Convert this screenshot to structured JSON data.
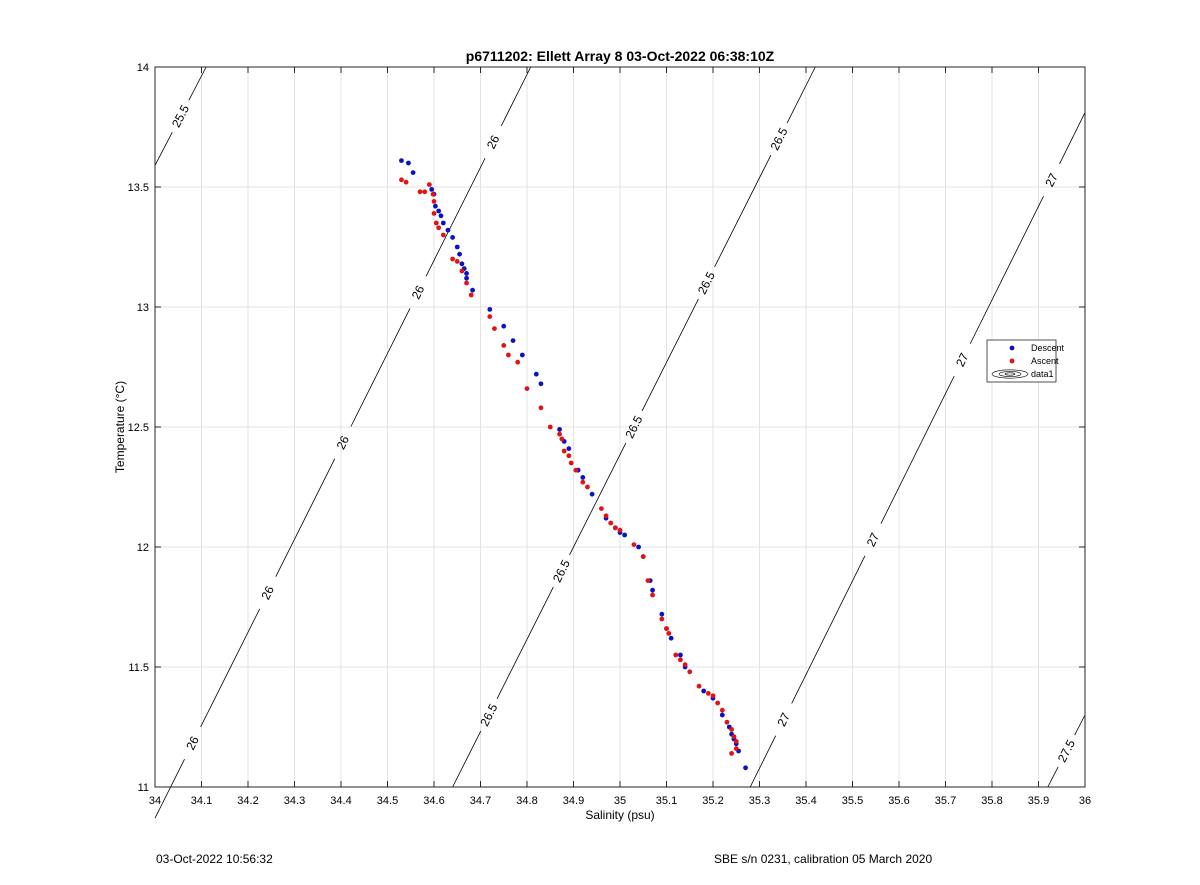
{
  "footer": {
    "left": "03-Oct-2022 10:56:32",
    "right": "SBE s/n 0231, calibration 05 March 2020"
  },
  "colors": {
    "descent": "#0a12c8",
    "ascent": "#e01414",
    "grid": "#e3e3e3",
    "contour": "#000000"
  },
  "chart_data": {
    "type": "scatter",
    "title": "p6711202: Ellett Array 8 03-Oct-2022 06:38:10Z",
    "xlabel": "Salinity (psu)",
    "ylabel": "Temperature (°C)",
    "xlim": [
      34,
      36
    ],
    "ylim": [
      11,
      14
    ],
    "xticks": [
      "34",
      "34.1",
      "34.2",
      "34.3",
      "34.4",
      "34.5",
      "34.6",
      "34.7",
      "34.8",
      "34.9",
      "35",
      "35.1",
      "35.2",
      "35.3",
      "35.4",
      "35.5",
      "35.6",
      "35.7",
      "35.8",
      "35.9",
      "36"
    ],
    "yticks": [
      "11",
      "11.5",
      "12",
      "12.5",
      "13",
      "13.5",
      "14"
    ],
    "grid": true,
    "legend_position": "right",
    "legend": [
      "Descent",
      "Ascent",
      "data1"
    ],
    "series": [
      {
        "name": "Descent",
        "marker": "dot",
        "x": [
          34.53,
          34.545,
          34.555,
          34.595,
          34.6,
          34.603,
          34.61,
          34.615,
          34.62,
          34.63,
          34.64,
          34.65,
          34.655,
          34.66,
          34.665,
          34.67,
          34.67,
          34.683,
          34.72,
          34.75,
          34.77,
          34.79,
          34.82,
          34.83,
          34.87,
          34.88,
          34.89,
          34.91,
          34.92,
          34.94,
          34.97,
          34.99,
          35.0,
          35.01,
          35.04,
          35.05,
          35.065,
          35.07,
          35.09,
          35.1,
          35.11,
          35.13,
          35.14,
          35.18,
          35.2,
          35.22,
          35.235,
          35.24,
          35.245,
          35.25,
          35.255,
          35.27
        ],
        "y": [
          13.61,
          13.6,
          13.56,
          13.49,
          13.47,
          13.42,
          13.4,
          13.38,
          13.35,
          13.32,
          13.29,
          13.25,
          13.22,
          13.18,
          13.16,
          13.14,
          13.12,
          13.07,
          12.99,
          12.92,
          12.86,
          12.8,
          12.72,
          12.68,
          12.49,
          12.44,
          12.41,
          12.32,
          12.29,
          12.22,
          12.12,
          12.08,
          12.06,
          12.05,
          12.0,
          11.96,
          11.86,
          11.82,
          11.72,
          11.66,
          11.62,
          11.55,
          11.5,
          11.4,
          11.37,
          11.3,
          11.25,
          11.22,
          11.2,
          11.18,
          11.15,
          11.08
        ]
      },
      {
        "name": "Ascent",
        "marker": "dot",
        "x": [
          34.53,
          34.54,
          34.57,
          34.58,
          34.59,
          34.598,
          34.6,
          34.6,
          34.605,
          34.61,
          34.62,
          34.64,
          34.65,
          34.66,
          34.67,
          34.68,
          34.72,
          34.73,
          34.75,
          34.76,
          34.78,
          34.8,
          34.83,
          34.85,
          34.87,
          34.875,
          34.88,
          34.89,
          34.895,
          34.905,
          34.92,
          34.93,
          34.96,
          34.97,
          34.98,
          34.99,
          35.0,
          35.03,
          35.05,
          35.06,
          35.07,
          35.09,
          35.1,
          35.105,
          35.12,
          35.13,
          35.14,
          35.15,
          35.17,
          35.19,
          35.2,
          35.21,
          35.22,
          35.23,
          35.24,
          35.245,
          35.25,
          35.25,
          35.24
        ],
        "y": [
          13.53,
          13.52,
          13.48,
          13.48,
          13.51,
          13.47,
          13.44,
          13.39,
          13.35,
          13.33,
          13.3,
          13.2,
          13.19,
          13.15,
          13.1,
          13.05,
          12.96,
          12.91,
          12.84,
          12.8,
          12.77,
          12.66,
          12.58,
          12.5,
          12.47,
          12.45,
          12.4,
          12.38,
          12.35,
          12.32,
          12.27,
          12.25,
          12.16,
          12.13,
          12.1,
          12.08,
          12.07,
          12.01,
          11.96,
          11.86,
          11.8,
          11.7,
          11.66,
          11.64,
          11.55,
          11.53,
          11.51,
          11.48,
          11.42,
          11.39,
          11.38,
          11.35,
          11.32,
          11.27,
          11.24,
          11.21,
          11.19,
          11.16,
          11.14
        ]
      }
    ],
    "contours": [
      {
        "level": "25.5",
        "labels": [
          "25.5"
        ],
        "line": [
          [
            34.0,
            13.59
          ],
          [
            34.11,
            14.0
          ]
        ]
      },
      {
        "level": "26",
        "labels": [
          "26",
          "26",
          "26",
          "26",
          "26"
        ],
        "line": [
          [
            34.0,
            10.87
          ],
          [
            34.808,
            14.0
          ]
        ]
      },
      {
        "level": "26.5",
        "labels": [
          "26.5",
          "26.5",
          "26.5",
          "26.5",
          "26.5"
        ],
        "line": [
          [
            34.64,
            11.0
          ],
          [
            35.42,
            14.0
          ]
        ]
      },
      {
        "level": "27",
        "labels": [
          "27",
          "27",
          "27",
          "27"
        ],
        "line": [
          [
            35.28,
            11.0
          ],
          [
            36.0,
            13.81
          ]
        ]
      },
      {
        "level": "27.5",
        "labels": [
          "27.5"
        ],
        "line": [
          [
            35.92,
            11.0
          ],
          [
            36.0,
            11.3
          ]
        ]
      }
    ]
  }
}
